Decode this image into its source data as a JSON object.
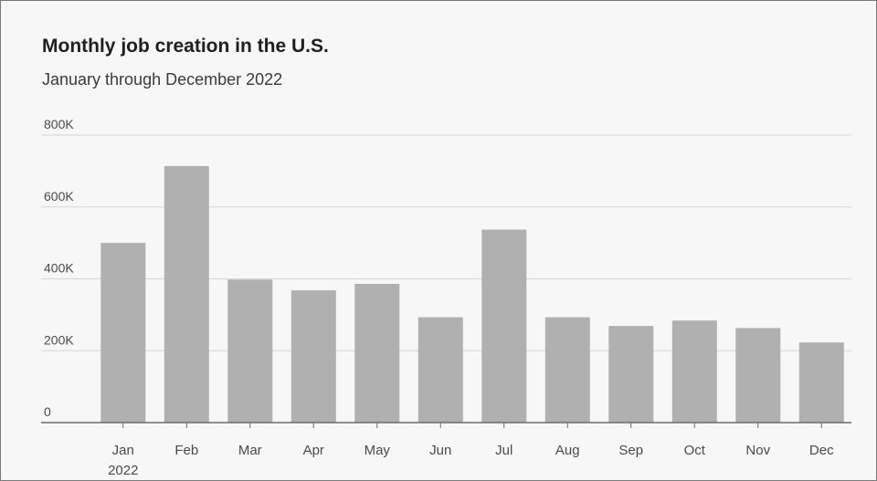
{
  "title": "Monthly job creation in the U.S.",
  "subtitle": "January through December 2022",
  "colors": {
    "bar": "#b0b0b0",
    "grid": "#d6d6d6",
    "axis": "#6a6a6a",
    "background": "#f7f7f7"
  },
  "chart_data": {
    "type": "bar",
    "title": "Monthly job creation in the U.S.",
    "subtitle": "January through December 2022",
    "categories": [
      "Jan",
      "Feb",
      "Mar",
      "Apr",
      "May",
      "Jun",
      "Jul",
      "Aug",
      "Sep",
      "Oct",
      "Nov",
      "Dec"
    ],
    "category_sublabels": [
      "2022",
      "",
      "",
      "",
      "",
      "",
      "",
      "",
      "",
      "",
      "",
      ""
    ],
    "values": [
      500000,
      714000,
      398000,
      368000,
      386000,
      293000,
      537000,
      293000,
      269000,
      284000,
      263000,
      223000
    ],
    "ylim": [
      0,
      800000
    ],
    "yticks": [
      0,
      200000,
      400000,
      600000,
      800000
    ],
    "ytick_labels": [
      "0",
      "200K",
      "400K",
      "600K",
      "800K"
    ],
    "grid": true,
    "legend": "none"
  }
}
